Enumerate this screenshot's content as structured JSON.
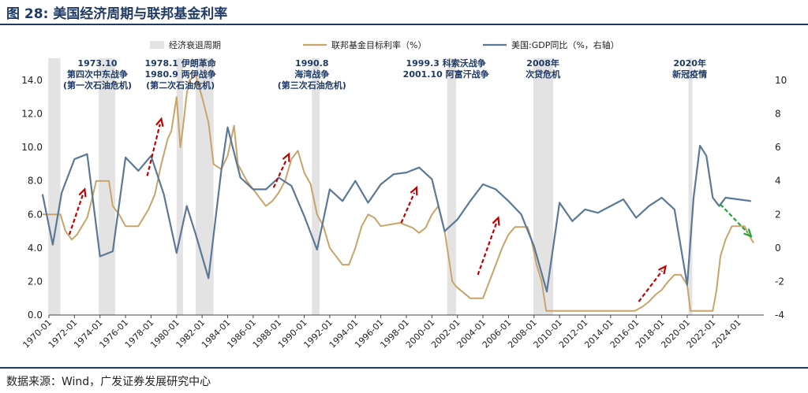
{
  "header": {
    "title": "图 28:  美国经济周期与联邦基金利率"
  },
  "footer": {
    "source": "数据来源：Wind，广发证券发展研究中心"
  },
  "colors": {
    "recession": "#e3e3e3",
    "fed_funds": "#c9a46a",
    "gdp": "#5b7896",
    "arrow_red": "#c00000",
    "arrow_green": "#22a33a",
    "annotation_text": "#1f3a64",
    "rule": "#1f3a64"
  },
  "chart_data": {
    "type": "line",
    "legend_position": "top",
    "legend": [
      "经济衰退周期",
      "联邦基金目标利率（%）",
      "美国:GDP同比（%，右轴）"
    ],
    "x_ticks": [
      "1970-01",
      "1972-01",
      "1974-01",
      "1976-01",
      "1978-01",
      "1980-01",
      "1982-01",
      "1984-01",
      "1986-01",
      "1988-01",
      "1990-01",
      "1992-01",
      "1994-01",
      "1996-01",
      "1998-01",
      "2000-01",
      "2002-01",
      "2004-01",
      "2006-01",
      "2008-01",
      "2010-01",
      "2012-01",
      "2014-01",
      "2016-01",
      "2018-01",
      "2020-01",
      "2022-01",
      "2024-01"
    ],
    "left_axis": {
      "min": 0,
      "max": 14,
      "ticks": [
        "0.0",
        "2.0",
        "4.0",
        "6.0",
        "8.0",
        "10.0",
        "12.0",
        "14.0"
      ]
    },
    "right_axis": {
      "min": -4,
      "max": 10,
      "ticks": [
        "-4",
        "-2",
        "0",
        "2",
        "4",
        "6",
        "8",
        "10"
      ]
    },
    "recessions": [
      {
        "start": 1969.95,
        "end": 1970.9
      },
      {
        "start": 1973.9,
        "end": 1975.2
      },
      {
        "start": 1980.0,
        "end": 1980.5
      },
      {
        "start": 1981.5,
        "end": 1982.9
      },
      {
        "start": 1990.6,
        "end": 1991.2
      },
      {
        "start": 2001.2,
        "end": 2001.9
      },
      {
        "start": 2007.95,
        "end": 2009.5
      },
      {
        "start": 2020.1,
        "end": 2020.4
      }
    ],
    "series": [
      {
        "name": "联邦基金目标利率（%）",
        "axis": "left",
        "x": [
          1969.5,
          1970.9,
          1971.3,
          1971.8,
          1972.2,
          1973.0,
          1973.4,
          1973.7,
          1974.7,
          1975.0,
          1975.5,
          1976.0,
          1977.0,
          1977.8,
          1978.3,
          1978.8,
          1979.3,
          1979.6,
          1980.0,
          1980.3,
          1980.5,
          1980.8,
          1981.0,
          1981.5,
          1982.0,
          1982.5,
          1982.9,
          1983.5,
          1984.0,
          1984.5,
          1984.8,
          1985.5,
          1986.0,
          1986.5,
          1987.0,
          1987.5,
          1988.0,
          1988.5,
          1989.0,
          1989.5,
          1990.0,
          1990.5,
          1991.0,
          1991.5,
          1992.0,
          1992.5,
          1993.0,
          1993.5,
          1994.0,
          1994.5,
          1995.0,
          1995.5,
          1996.0,
          1997.5,
          1998.5,
          1999.0,
          1999.5,
          2000.0,
          2000.5,
          2001.0,
          2001.3,
          2001.6,
          2001.9,
          2003.0,
          2004.0,
          2004.5,
          2005.0,
          2005.5,
          2006.0,
          2006.5,
          2007.5,
          2007.8,
          2008.2,
          2008.6,
          2008.95,
          2010.0,
          2015.9,
          2016.5,
          2017.0,
          2017.5,
          2018.0,
          2018.5,
          2019.0,
          2019.5,
          2020.0,
          2020.25,
          2021.5,
          2022.0,
          2022.3,
          2022.6,
          2023.0,
          2023.5,
          2024.5,
          2024.8,
          2025.2
        ],
        "values": [
          6.0,
          6.0,
          5.0,
          4.5,
          4.8,
          5.8,
          7.0,
          8.0,
          8.0,
          6.5,
          6.0,
          5.3,
          5.3,
          6.3,
          7.2,
          9.0,
          10.5,
          11.0,
          13.0,
          10.0,
          11.2,
          13.2,
          14.0,
          18.0,
          13.0,
          11.5,
          9.0,
          8.7,
          9.5,
          11.3,
          9.0,
          8.0,
          7.5,
          7.0,
          6.5,
          6.8,
          7.3,
          8.0,
          9.3,
          9.8,
          8.5,
          7.8,
          6.0,
          5.3,
          4.0,
          3.5,
          3.0,
          3.0,
          4.0,
          5.3,
          6.0,
          5.8,
          5.3,
          5.5,
          5.2,
          4.9,
          5.2,
          6.0,
          6.5,
          5.0,
          3.5,
          2.0,
          1.7,
          1.0,
          1.0,
          2.0,
          3.0,
          4.0,
          4.8,
          5.25,
          5.25,
          4.5,
          3.0,
          2.0,
          0.25,
          0.25,
          0.25,
          0.5,
          0.8,
          1.2,
          1.5,
          2.0,
          2.4,
          2.4,
          1.8,
          0.25,
          0.25,
          0.25,
          1.5,
          3.5,
          4.5,
          5.3,
          5.3,
          4.8,
          4.3
        ]
      },
      {
        "name": "美国:GDP同比（%，右轴）",
        "axis": "right",
        "x": [
          1969.5,
          1970.3,
          1971.0,
          1972.0,
          1973.0,
          1974.0,
          1975.0,
          1976.0,
          1977.0,
          1978.0,
          1979.0,
          1980.0,
          1980.8,
          1981.5,
          1982.5,
          1983.5,
          1984.0,
          1985.0,
          1986.0,
          1987.0,
          1988.0,
          1989.0,
          1990.0,
          1991.0,
          1992.0,
          1993.0,
          1994.0,
          1995.0,
          1996.0,
          1997.0,
          1998.0,
          1999.0,
          2000.0,
          2001.0,
          2002.0,
          2003.0,
          2004.0,
          2005.0,
          2006.0,
          2007.0,
          2008.0,
          2009.0,
          2010.0,
          2011.0,
          2012.0,
          2013.0,
          2014.0,
          2015.0,
          2016.0,
          2017.0,
          2018.0,
          2019.0,
          2020.0,
          2020.5,
          2021.0,
          2021.5,
          2022.0,
          2022.5,
          2023.0,
          2024.0,
          2025.0
        ],
        "values": [
          3.2,
          0.2,
          3.3,
          5.3,
          5.6,
          -0.5,
          -0.2,
          5.4,
          4.6,
          5.5,
          3.2,
          -0.3,
          2.5,
          0.8,
          -1.8,
          4.6,
          7.2,
          4.2,
          3.5,
          3.5,
          4.2,
          3.7,
          1.9,
          -0.1,
          3.5,
          2.8,
          4.0,
          2.7,
          3.8,
          4.4,
          4.5,
          4.8,
          4.1,
          1.0,
          1.7,
          2.8,
          3.8,
          3.5,
          2.8,
          2.0,
          0.1,
          -2.6,
          2.7,
          1.6,
          2.3,
          2.1,
          2.5,
          2.9,
          1.8,
          2.5,
          3.0,
          2.3,
          -2.2,
          3.0,
          6.1,
          5.5,
          3.0,
          2.5,
          3.0,
          2.9,
          2.8
        ]
      }
    ],
    "annotations": [
      {
        "x": 1973.8,
        "lines": [
          "1973.10",
          "第四次中东战争",
          "(第一次石油危机)"
        ]
      },
      {
        "x": 1980.3,
        "lines": [
          "1978.1  伊朗革命",
          "1980.9  两伊战争",
          "(第二次石油危机)"
        ]
      },
      {
        "x": 1990.6,
        "lines": [
          "1990.8",
          "海湾战争",
          "(第三次石油危机)"
        ]
      },
      {
        "x": 2001.1,
        "lines": [
          "1999.3  科索沃战争",
          "2001.10  阿富汗战争"
        ]
      },
      {
        "x": 2008.7,
        "lines": [
          "2008年",
          "次贷危机"
        ]
      },
      {
        "x": 2020.2,
        "lines": [
          "2020年",
          "新冠疫情"
        ]
      }
    ],
    "arrows": [
      {
        "color": "red",
        "from": [
          1971.6,
          4.8
        ],
        "to": [
          1972.8,
          7.5
        ]
      },
      {
        "color": "red",
        "from": [
          1977.7,
          8.3
        ],
        "to": [
          1978.8,
          11.7
        ]
      },
      {
        "color": "red",
        "from": [
          1987.6,
          7.6
        ],
        "to": [
          1988.8,
          9.6
        ]
      },
      {
        "color": "red",
        "from": [
          1997.6,
          5.5
        ],
        "to": [
          1998.8,
          7.6
        ]
      },
      {
        "color": "red",
        "from": [
          2003.6,
          2.4
        ],
        "to": [
          2005.2,
          5.8
        ]
      },
      {
        "color": "red",
        "from": [
          2016.2,
          0.8
        ],
        "to": [
          2018.3,
          2.9
        ]
      },
      {
        "color": "green",
        "from": [
          2022.6,
          6.6
        ],
        "to": [
          2025.0,
          4.7
        ]
      }
    ]
  }
}
